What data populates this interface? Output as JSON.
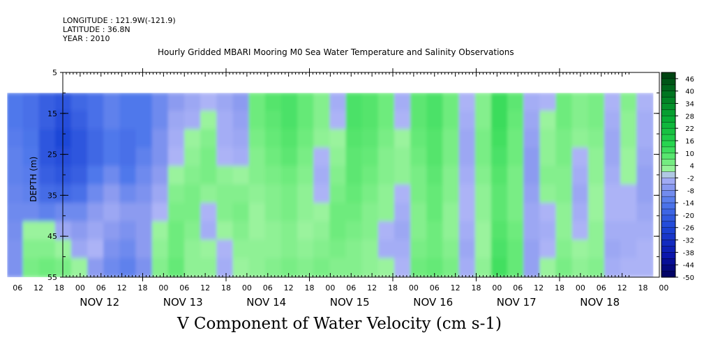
{
  "header": {
    "longitude": "LONGITUDE : 121.9W(-121.9)",
    "latitude": "LATITUDE : 36.8N",
    "year": "YEAR : 2010"
  },
  "chart_data": {
    "type": "heatmap",
    "title": "Hourly Gridded MBARI Mooring M0 Sea Water Temperature and Salinity Observations",
    "variable_title": "V Component of Water Velocity (cm s-1)",
    "ylabel": "DEPTH (m)",
    "xlabel": "",
    "ylim": [
      5,
      55
    ],
    "y_inverted": true,
    "y_ticks": [
      5,
      15,
      25,
      35,
      45,
      55
    ],
    "x_day_labels": [
      "NOV 12",
      "NOV 13",
      "NOV 14",
      "NOV 15",
      "NOV 16",
      "NOV 17",
      "NOV 18"
    ],
    "x_hour_labels": [
      "06",
      "12",
      "18",
      "00",
      "06",
      "12",
      "18",
      "00",
      "06",
      "12",
      "18",
      "00",
      "06",
      "12",
      "18",
      "00",
      "06",
      "12",
      "18",
      "00",
      "06",
      "12",
      "18",
      "00",
      "06",
      "12",
      "18",
      "00",
      "06",
      "12",
      "18",
      "00"
    ],
    "data_depth_range": [
      10,
      55
    ],
    "data_time_range": [
      "2010-11-11 09:00",
      "2010-11-19 03:00"
    ],
    "colorbar_labels": [
      "46",
      "40",
      "34",
      "28",
      "22",
      "16",
      "10",
      "4",
      "-2",
      "-8",
      "-14",
      "-20",
      "-26",
      "-32",
      "-38",
      "-44",
      "-50"
    ],
    "colorbar_range": [
      -50,
      49
    ],
    "colorbar_colors": {
      "min": "#000060",
      "neg_mid": "#3a6ae0",
      "near_zero_neg": "#a8b0f4",
      "near_zero_pos": "#9ef0a0",
      "pos_mid": "#1ec84a",
      "max": "#004a10"
    },
    "column_profiles": [
      [
        -14,
        -14,
        -13,
        -12,
        -12,
        -11,
        -10,
        -9,
        -8,
        -8
      ],
      [
        -16,
        -16,
        -15,
        -14,
        -13,
        -12,
        -10,
        2,
        4,
        5
      ],
      [
        -20,
        -20,
        -22,
        -22,
        -20,
        -17,
        -12,
        2,
        4,
        6
      ],
      [
        -22,
        -24,
        -26,
        -24,
        -22,
        -18,
        -10,
        -4,
        2,
        5
      ],
      [
        -18,
        -20,
        -22,
        -22,
        -20,
        -16,
        -10,
        -6,
        -4,
        2
      ],
      [
        -16,
        -16,
        -18,
        -18,
        -14,
        -10,
        -6,
        -4,
        -2,
        -6
      ],
      [
        -12,
        -12,
        -14,
        -14,
        -10,
        -6,
        -4,
        -6,
        -8,
        -10
      ],
      [
        -14,
        -14,
        -16,
        -16,
        -14,
        -10,
        -6,
        -8,
        -10,
        -12
      ],
      [
        -14,
        -14,
        -14,
        -12,
        -10,
        -8,
        -6,
        -6,
        -6,
        -8
      ],
      [
        -10,
        -10,
        -8,
        -8,
        -6,
        -4,
        -2,
        2,
        3,
        4
      ],
      [
        -6,
        -4,
        -3,
        -2,
        2,
        4,
        5,
        6,
        6,
        7
      ],
      [
        -4,
        -3,
        2,
        3,
        4,
        5,
        5,
        4,
        3,
        3
      ],
      [
        -2,
        2,
        4,
        5,
        5,
        3,
        -2,
        -3,
        2,
        3
      ],
      [
        -4,
        -3,
        -3,
        -2,
        3,
        4,
        4,
        2,
        -2,
        -3
      ],
      [
        -6,
        -5,
        -4,
        -3,
        2,
        4,
        5,
        4,
        3,
        2
      ],
      [
        6,
        6,
        5,
        4,
        4,
        3,
        2,
        2,
        3,
        3
      ],
      [
        9,
        8,
        7,
        6,
        5,
        4,
        4,
        3,
        3,
        4
      ],
      [
        10,
        10,
        9,
        8,
        6,
        5,
        5,
        4,
        4,
        5
      ],
      [
        7,
        7,
        6,
        5,
        4,
        3,
        3,
        2,
        3,
        4
      ],
      [
        4,
        4,
        3,
        -2,
        -3,
        -2,
        2,
        3,
        4,
        5
      ],
      [
        -3,
        -2,
        2,
        3,
        4,
        5,
        6,
        6,
        5,
        4
      ],
      [
        10,
        10,
        9,
        8,
        8,
        7,
        6,
        5,
        4,
        4
      ],
      [
        9,
        9,
        8,
        7,
        6,
        5,
        4,
        4,
        3,
        3
      ],
      [
        6,
        6,
        5,
        4,
        4,
        3,
        3,
        -2,
        -3,
        2
      ],
      [
        -3,
        -2,
        2,
        3,
        3,
        -2,
        -3,
        -4,
        -3,
        -2
      ],
      [
        8,
        8,
        7,
        6,
        5,
        5,
        4,
        4,
        5,
        6
      ],
      [
        10,
        10,
        9,
        9,
        8,
        7,
        7,
        6,
        6,
        7
      ],
      [
        6,
        6,
        5,
        5,
        4,
        4,
        3,
        3,
        4,
        5
      ],
      [
        -2,
        -3,
        -4,
        -4,
        -3,
        -2,
        -2,
        -3,
        -4,
        -3
      ],
      [
        4,
        4,
        5,
        5,
        4,
        3,
        3,
        2,
        2,
        3
      ],
      [
        12,
        12,
        11,
        10,
        9,
        8,
        8,
        9,
        10,
        11
      ],
      [
        8,
        7,
        6,
        6,
        5,
        5,
        5,
        6,
        7,
        7
      ],
      [
        -3,
        -4,
        -5,
        -6,
        -6,
        -5,
        -4,
        -4,
        -5,
        -5
      ],
      [
        -2,
        2,
        3,
        3,
        4,
        3,
        -2,
        -3,
        -2,
        2
      ],
      [
        6,
        6,
        5,
        5,
        4,
        4,
        3,
        3,
        4,
        5
      ],
      [
        4,
        4,
        3,
        -2,
        -3,
        -4,
        -3,
        -2,
        2,
        3
      ],
      [
        5,
        5,
        4,
        3,
        3,
        2,
        2,
        3,
        3,
        4
      ],
      [
        -2,
        -3,
        -4,
        -4,
        -3,
        -2,
        -2,
        -3,
        -4,
        -3
      ],
      [
        4,
        3,
        3,
        2,
        2,
        -2,
        -2,
        -3,
        -3,
        -2
      ],
      [
        -2,
        -3,
        -3,
        -4,
        -5,
        -5,
        -4,
        -3,
        -2,
        -2
      ]
    ]
  }
}
